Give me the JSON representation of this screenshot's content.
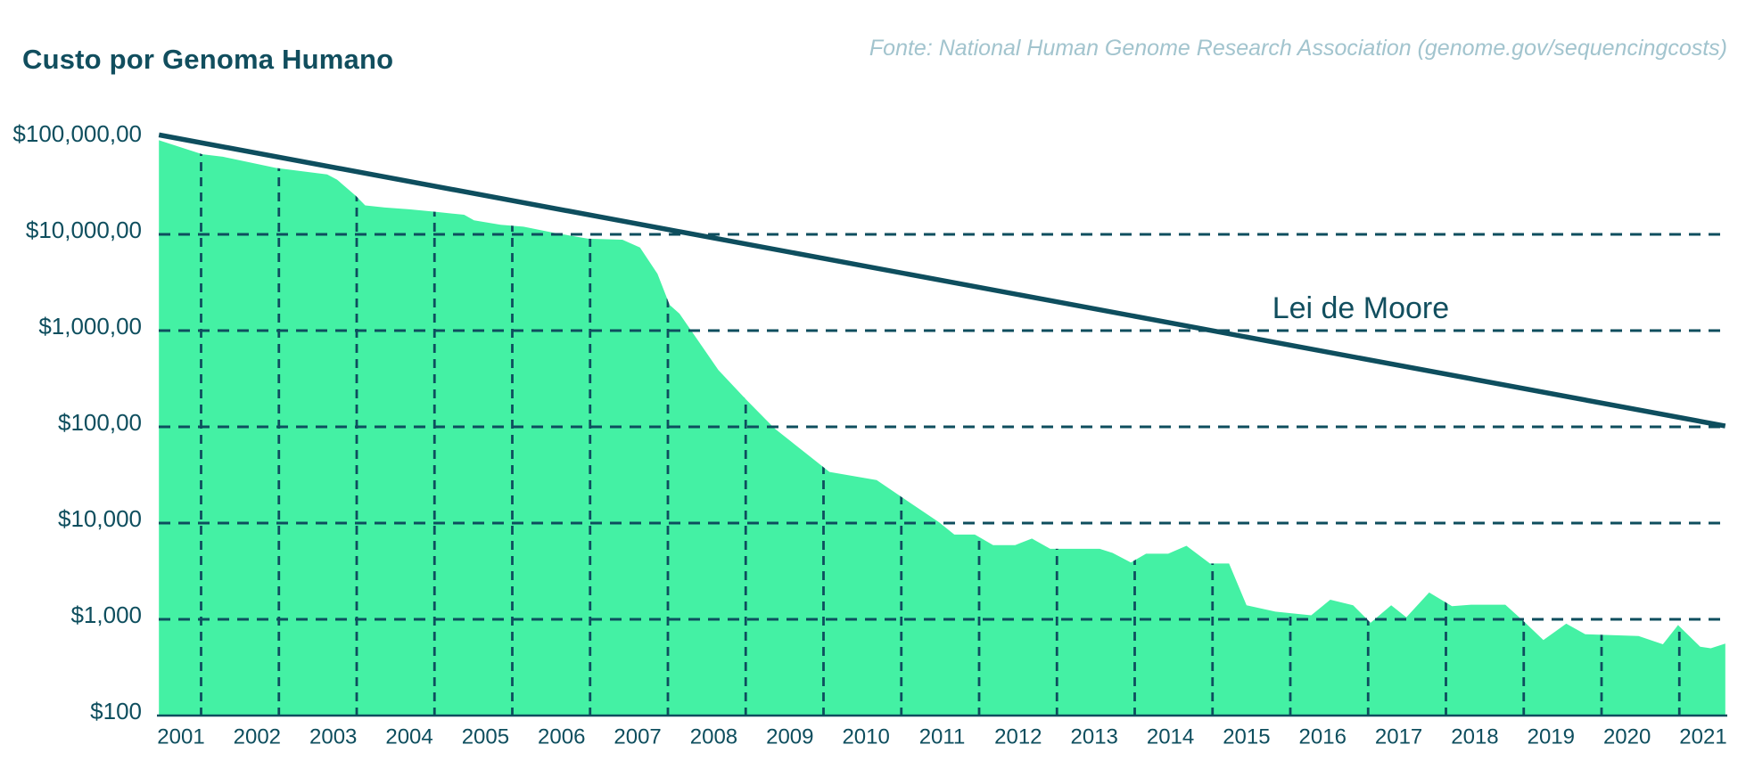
{
  "header": {
    "title": "Custo por Genoma Humano",
    "source": "Fonte: National Human Genome Research Association (genome.gov/sequencingcosts)"
  },
  "colors": {
    "area_fill": "#44f1a4",
    "dark_teal": "#0e4e5e",
    "title_teal": "#114e5e",
    "source_gray_blue": "#a2c4ce",
    "background": "#ffffff"
  },
  "chart_data": {
    "type": "area",
    "title": "Custo por Genoma Humano",
    "source_note": "Fonte: National Human Genome Research Association (genome.gov/sequencingcosts)",
    "y_axis": {
      "scale": "log",
      "range": [
        100,
        100000000
      ],
      "tick_values": [
        100000000,
        10000000,
        1000000,
        100000,
        10000,
        1000,
        100
      ],
      "tick_labels": [
        "$100,000,00",
        "$10,000,00",
        "$1,000,00",
        "$100,00",
        "$10,000",
        "$1,000",
        "$100"
      ]
    },
    "x_axis": {
      "range": [
        2000.71,
        2021.29
      ],
      "tick_labels": [
        "2001",
        "2002",
        "2003",
        "2004",
        "2005",
        "2006",
        "2007",
        "2008",
        "2009",
        "2010",
        "2011",
        "2012",
        "2013",
        "2014",
        "2015",
        "2016",
        "2017",
        "2018",
        "2019",
        "2020",
        "2021"
      ]
    },
    "grid": {
      "style": "dashed",
      "horizontal_values": [
        10000000,
        1000000,
        100000,
        10000,
        1000
      ],
      "vertical_count": 20,
      "vertical_note": "dashed year separators clipped inside the green area"
    },
    "series": [
      {
        "name": "Custo por genoma (USD)",
        "type": "area",
        "points": [
          [
            2000.71,
            95000000
          ],
          [
            2001.28,
            68000000
          ],
          [
            2001.55,
            64000000
          ],
          [
            2002.25,
            49000000
          ],
          [
            2002.92,
            42000000
          ],
          [
            2003.05,
            37000000
          ],
          [
            2003.3,
            25000000
          ],
          [
            2003.42,
            20000000
          ],
          [
            2003.68,
            19000000
          ],
          [
            2004.0,
            18200000
          ],
          [
            2004.35,
            17100000
          ],
          [
            2004.72,
            16000000
          ],
          [
            2004.85,
            14000000
          ],
          [
            2005.2,
            12600000
          ],
          [
            2005.5,
            12000000
          ],
          [
            2005.9,
            10400000
          ],
          [
            2006.35,
            9000000
          ],
          [
            2006.8,
            8800000
          ],
          [
            2007.03,
            7300000
          ],
          [
            2007.26,
            3900000
          ],
          [
            2007.42,
            1850000
          ],
          [
            2007.55,
            1500000
          ],
          [
            2008.06,
            390000
          ],
          [
            2008.43,
            190000
          ],
          [
            2008.8,
            96000
          ],
          [
            2009.52,
            34000
          ],
          [
            2010.14,
            28000
          ],
          [
            2010.52,
            17500
          ],
          [
            2010.96,
            10200
          ],
          [
            2011.16,
            7600
          ],
          [
            2011.43,
            7600
          ],
          [
            2011.67,
            5900
          ],
          [
            2011.96,
            5900
          ],
          [
            2012.18,
            6900
          ],
          [
            2012.42,
            5400
          ],
          [
            2013.07,
            5400
          ],
          [
            2013.24,
            4900
          ],
          [
            2013.48,
            3900
          ],
          [
            2013.68,
            4800
          ],
          [
            2013.97,
            4800
          ],
          [
            2014.21,
            5800
          ],
          [
            2014.52,
            3800
          ],
          [
            2014.77,
            3800
          ],
          [
            2015.0,
            1400
          ],
          [
            2015.38,
            1200
          ],
          [
            2015.85,
            1100
          ],
          [
            2016.1,
            1600
          ],
          [
            2016.4,
            1400
          ],
          [
            2016.63,
            920
          ],
          [
            2016.9,
            1400
          ],
          [
            2017.1,
            1050
          ],
          [
            2017.4,
            1900
          ],
          [
            2017.7,
            1370
          ],
          [
            2017.95,
            1420
          ],
          [
            2018.4,
            1420
          ],
          [
            2018.65,
            940
          ],
          [
            2018.9,
            610
          ],
          [
            2019.2,
            900
          ],
          [
            2019.45,
            700
          ],
          [
            2020.15,
            670
          ],
          [
            2020.47,
            550
          ],
          [
            2020.67,
            870
          ],
          [
            2020.96,
            520
          ],
          [
            2021.1,
            500
          ],
          [
            2021.29,
            560
          ]
        ]
      },
      {
        "name": "Lei de Moore",
        "type": "line",
        "points": [
          [
            2000.71,
            108000000
          ],
          [
            2021.29,
            102000
          ]
        ]
      }
    ],
    "annotations": [
      {
        "text": "Lei de Moore",
        "year": 2016.5,
        "value": 1700000
      }
    ]
  }
}
